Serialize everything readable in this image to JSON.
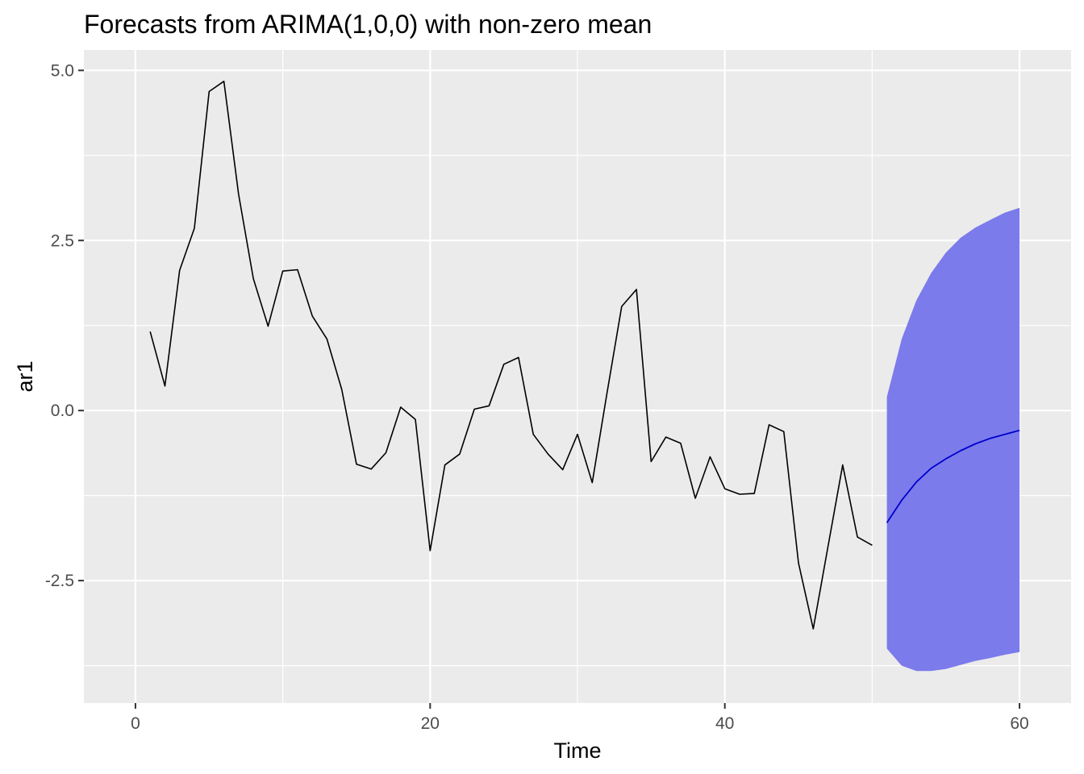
{
  "chart_data": {
    "type": "line",
    "title": "Forecasts from ARIMA(1,0,0) with non-zero mean",
    "xlabel": "Time",
    "ylabel": "ar1",
    "xlim": [
      -3.5,
      63.5
    ],
    "ylim": [
      -4.3,
      5.3
    ],
    "x_ticks": [
      0,
      20,
      40,
      60
    ],
    "x_tick_labels": [
      "0",
      "20",
      "40",
      "60"
    ],
    "y_ticks": [
      5.0,
      2.5,
      0.0,
      -2.5
    ],
    "y_tick_labels": [
      "5.0",
      "2.5",
      "0.0",
      "-2.5"
    ],
    "grid": true,
    "legend": "none",
    "colors": {
      "panel": "#ebebeb",
      "grid": "#ffffff",
      "observed": "#000000",
      "forecast": "#0000cc",
      "interval": "#7b7bec"
    },
    "series": [
      {
        "role": "observed",
        "x": [
          1,
          2,
          3,
          4,
          5,
          6,
          7,
          8,
          9,
          10,
          11,
          12,
          13,
          14,
          15,
          16,
          17,
          18,
          19,
          20,
          21,
          22,
          23,
          24,
          25,
          26,
          27,
          28,
          29,
          30,
          31,
          32,
          33,
          34,
          35,
          36,
          37,
          38,
          39,
          40,
          41,
          42,
          43,
          44,
          45,
          46,
          47,
          48,
          49,
          50
        ],
        "values": [
          1.16,
          0.36,
          2.06,
          2.68,
          4.69,
          4.84,
          3.18,
          1.94,
          1.24,
          2.05,
          2.07,
          1.39,
          1.05,
          0.31,
          -0.79,
          -0.86,
          -0.62,
          0.05,
          -0.13,
          -2.06,
          -0.8,
          -0.64,
          0.02,
          0.07,
          0.68,
          0.78,
          -0.35,
          -0.64,
          -0.87,
          -0.35,
          -1.06,
          0.25,
          1.53,
          1.78,
          -0.75,
          -0.39,
          -0.48,
          -1.29,
          -0.68,
          -1.15,
          -1.23,
          -1.22,
          -0.21,
          -0.31,
          -2.24,
          -3.21,
          -2.0,
          -0.8,
          -1.86,
          -1.98
        ]
      },
      {
        "role": "forecast",
        "x": [
          51,
          52,
          53,
          54,
          55,
          56,
          57,
          58,
          59,
          60
        ],
        "values": [
          -1.65,
          -1.32,
          -1.05,
          -0.85,
          -0.71,
          -0.59,
          -0.49,
          -0.41,
          -0.35,
          -0.29
        ]
      },
      {
        "role": "interval",
        "x": [
          51,
          52,
          53,
          54,
          55,
          56,
          57,
          58,
          59,
          60
        ],
        "upper": [
          0.2,
          1.05,
          1.62,
          2.02,
          2.32,
          2.54,
          2.69,
          2.8,
          2.91,
          2.98
        ],
        "lower": [
          -3.5,
          -3.75,
          -3.83,
          -3.83,
          -3.8,
          -3.74,
          -3.68,
          -3.64,
          -3.59,
          -3.55
        ]
      }
    ]
  }
}
